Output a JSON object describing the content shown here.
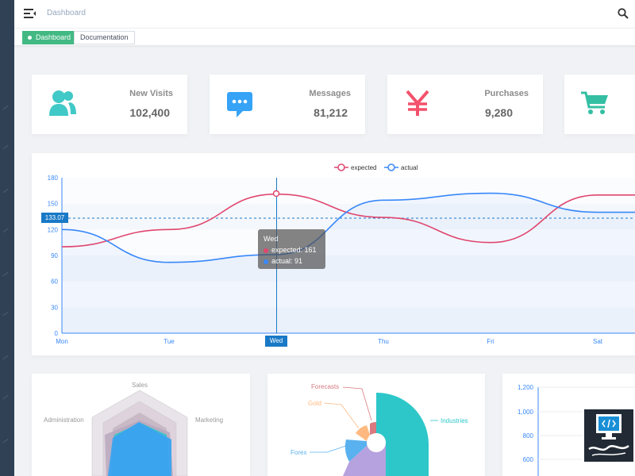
{
  "navbar": {
    "breadcrumb": "Dashboard"
  },
  "tags": [
    {
      "label": "Dashboard",
      "active": true
    },
    {
      "label": "Documentation",
      "active": false
    }
  ],
  "stats": [
    {
      "label": "New Visits",
      "value": "102,400",
      "icon": "people-icon",
      "color": "#40c9c6"
    },
    {
      "label": "Messages",
      "value": "81,212",
      "icon": "message-icon",
      "color": "#36a3f7"
    },
    {
      "label": "Purchases",
      "value": "9,280",
      "icon": "yen-icon",
      "color": "#f4516c"
    },
    {
      "label": "",
      "value": "",
      "icon": "shopping-cart-icon",
      "color": "#34bfa3"
    }
  ],
  "line_chart_labels": {
    "legend_expected": "expected",
    "legend_actual": "actual",
    "y_pointer": "133.07",
    "x_pointer": "Wed",
    "tooltip_title": "Wed",
    "tooltip_expected": "expected: 161",
    "tooltip_actual": "actual: 91"
  },
  "chart_data": [
    {
      "type": "line",
      "x": [
        "Mon",
        "Tue",
        "Wed",
        "Thu",
        "Fri",
        "Sat"
      ],
      "series": [
        {
          "name": "expected",
          "values": [
            100,
            120,
            161,
            134,
            105,
            160
          ],
          "color": "#e0466e"
        },
        {
          "name": "actual",
          "values": [
            120,
            82,
            91,
            154,
            162,
            140
          ],
          "color": "#3888fa"
        }
      ],
      "yticks": [
        0,
        30,
        60,
        90,
        120,
        150,
        180
      ],
      "ylim": [
        0,
        180
      ],
      "legend": "top-center"
    },
    {
      "type": "radar",
      "indicators": [
        "Sales",
        "Marketing",
        "Administration"
      ]
    },
    {
      "type": "pie",
      "labels": [
        "Industries",
        "Forecasts",
        "Gold",
        "Forex"
      ]
    },
    {
      "type": "bar",
      "yticks": [
        "600",
        "800",
        "1,000",
        "1,200"
      ]
    }
  ],
  "colors": {
    "accent": "#42b983",
    "sidebar": "#304156",
    "pointer": "#1979c6"
  }
}
